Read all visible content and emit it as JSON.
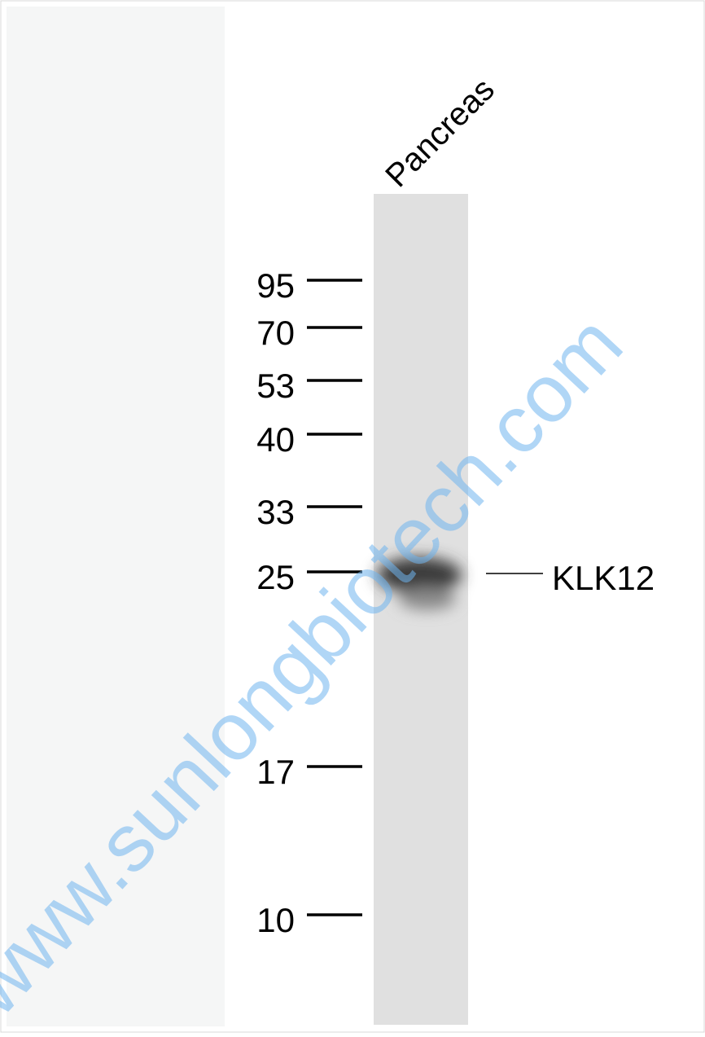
{
  "lane_label": "Pancreas",
  "markers": [
    95,
    70,
    53,
    40,
    33,
    25,
    17,
    10
  ],
  "band_label": "KLK12",
  "watermark": "www.sunlongbiotech.com"
}
